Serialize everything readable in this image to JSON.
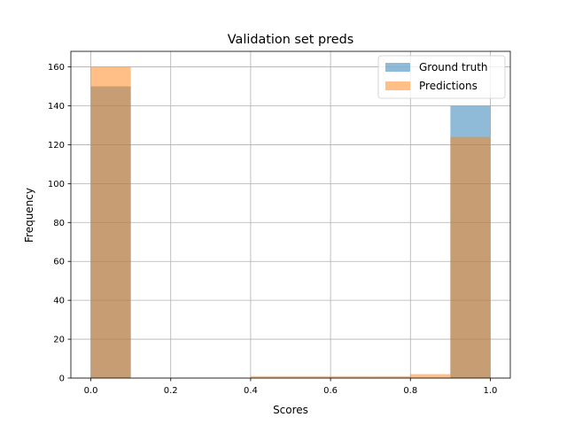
{
  "chart_data": {
    "type": "histogram",
    "title": "Validation set preds",
    "xlabel": "Scores",
    "ylabel": "Frequency",
    "xlim": [
      -0.05,
      1.05
    ],
    "ylim": [
      0,
      168
    ],
    "xticks": [
      0.0,
      0.2,
      0.4,
      0.6,
      0.8,
      1.0
    ],
    "xtick_labels": [
      "0.0",
      "0.2",
      "0.4",
      "0.6",
      "0.8",
      "1.0"
    ],
    "yticks": [
      0,
      20,
      40,
      60,
      80,
      100,
      120,
      140,
      160
    ],
    "ytick_labels": [
      "0",
      "20",
      "40",
      "60",
      "80",
      "100",
      "120",
      "140",
      "160"
    ],
    "bin_edges": [
      0.0,
      0.1,
      0.2,
      0.3,
      0.4,
      0.5,
      0.6,
      0.7,
      0.8,
      0.9,
      1.0
    ],
    "grid": true,
    "legend_position": "top-right",
    "series": [
      {
        "name": "Ground truth",
        "color": "#1f77b4",
        "alpha": 0.5,
        "counts": [
          150,
          0,
          0,
          0,
          0,
          0,
          0,
          0,
          0,
          140
        ]
      },
      {
        "name": "Predictions",
        "color": "#ff7f0e",
        "alpha": 0.5,
        "counts": [
          160,
          0,
          0,
          0,
          1,
          1,
          1,
          1,
          2,
          124
        ]
      }
    ]
  }
}
